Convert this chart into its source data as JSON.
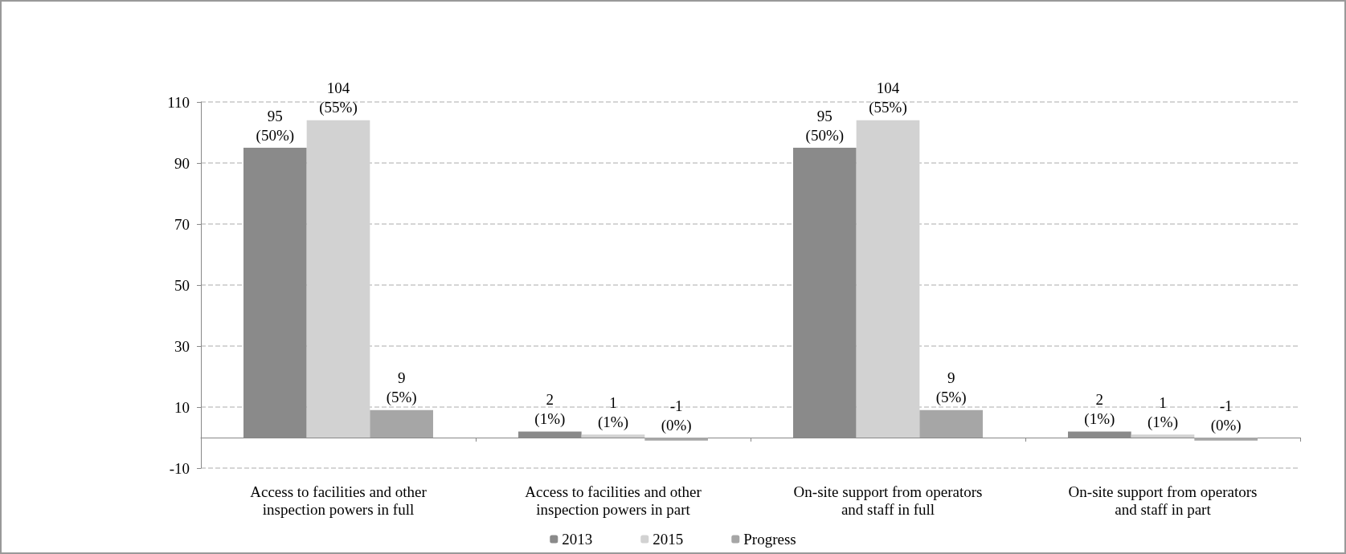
{
  "chart_data": {
    "type": "bar",
    "categories": [
      "Access to facilities and other\ninspection powers in full",
      "Access to facilities and other\ninspection powers in part",
      "On-site support from operators\nand staff in full",
      "On-site support from operators\nand staff in part"
    ],
    "series": [
      {
        "name": "2013",
        "color": "#8a8a8a",
        "values": [
          95,
          2,
          95,
          2
        ],
        "value_labels": [
          "95\n(50%)",
          "2\n(1%)",
          "95\n(50%)",
          "2\n(1%)"
        ]
      },
      {
        "name": "2015",
        "color": "#d2d2d2",
        "values": [
          104,
          1,
          104,
          1
        ],
        "value_labels": [
          "104\n(55%)",
          "1\n(1%)",
          "104\n(55%)",
          "1\n(1%)"
        ]
      },
      {
        "name": "Progress",
        "color": "#a6a6a6",
        "values": [
          9,
          -1,
          9,
          -1
        ],
        "value_labels": [
          "9\n(5%)",
          "-1\n(0%)",
          "9\n(5%)",
          "-1\n(0%)"
        ]
      }
    ],
    "ylim": [
      -10,
      110
    ],
    "yticks": [
      -10,
      10,
      30,
      50,
      70,
      90,
      110
    ],
    "grid": "y",
    "legend": "bottom"
  }
}
